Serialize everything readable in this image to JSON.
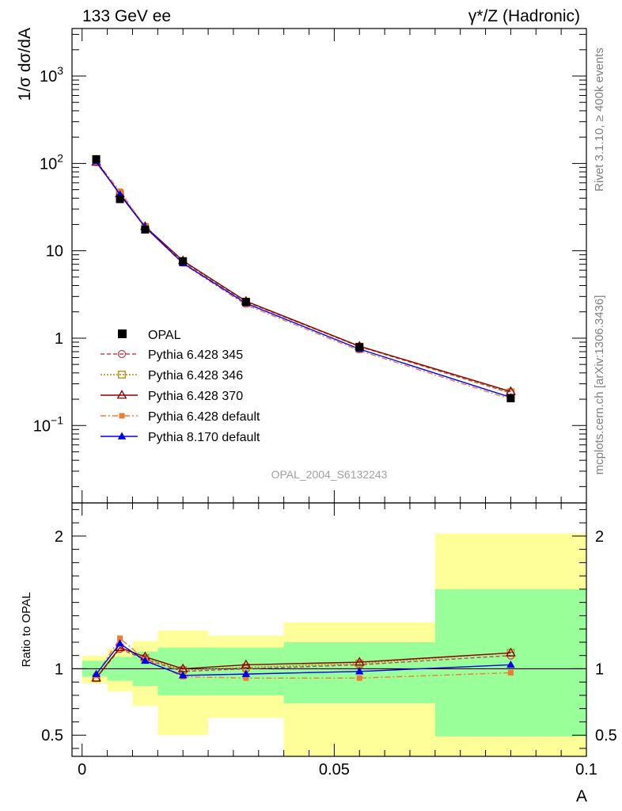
{
  "header": {
    "left": "133 GeV ee",
    "right": "γ*/Z (Hadronic)"
  },
  "side_text": {
    "upper": "Rivet 3.1.10, ≥ 400k events",
    "lower": "mcplots.cern.ch [arXiv:1306.3436]"
  },
  "analysis_label": "OPAL_2004_S6132243",
  "chart_data": [
    {
      "type": "line",
      "panel": "main",
      "ylabel": "1/σ dσ/dA",
      "yscale": "log",
      "ylim": [
        0.013,
        3500
      ],
      "xlim": [
        -0.002,
        0.1
      ],
      "yticks": [
        {
          "value": 0.1,
          "base": "10",
          "exp": "−1"
        },
        {
          "value": 1,
          "label": "1"
        },
        {
          "value": 10,
          "label": "10"
        },
        {
          "value": 100,
          "base": "10",
          "exp": "2"
        },
        {
          "value": 1000,
          "base": "10",
          "exp": "3"
        }
      ],
      "legend_position": "bottom-left",
      "x": [
        0.0028,
        0.0075,
        0.0125,
        0.02,
        0.0325,
        0.055,
        0.085
      ],
      "reference": {
        "name": "OPAL",
        "values": [
          112,
          39,
          17.5,
          7.6,
          2.6,
          0.79,
          0.205
        ],
        "color": "#000000"
      },
      "series": [
        {
          "name": "Pythia 6.428 345",
          "values": [
            104,
            45,
            18.5,
            7.5,
            2.6,
            0.8,
            0.235
          ],
          "color": "#c0484f",
          "dash": "5,3",
          "marker": "open-circle"
        },
        {
          "name": "Pythia 6.428 346",
          "values": [
            105,
            45.5,
            18.7,
            7.6,
            2.62,
            0.8,
            0.24
          ],
          "color": "#b8860b",
          "dash": "2,2",
          "marker": "open-square"
        },
        {
          "name": "Pythia 6.428 370",
          "values": [
            103,
            45,
            19,
            7.7,
            2.65,
            0.81,
            0.245
          ],
          "color": "#8b0000",
          "dash": "",
          "marker": "open-triangle"
        },
        {
          "name": "Pythia 6.428 default",
          "values": [
            107,
            48,
            18.8,
            7.1,
            2.4,
            0.72,
            0.2
          ],
          "color": "#f07b37",
          "dash": "7,3,2,3",
          "marker": "filled-square"
        },
        {
          "name": "Pythia 8.170 default",
          "values": [
            106,
            44,
            18.6,
            7.2,
            2.5,
            0.75,
            0.21
          ],
          "color": "#0000ee",
          "dash": "",
          "marker": "filled-triangle"
        }
      ]
    },
    {
      "type": "line",
      "panel": "ratio",
      "xlabel": "A",
      "ylabel": "Ratio to OPAL",
      "ylim": [
        0.34,
        2.25
      ],
      "xlim": [
        -0.002,
        0.1
      ],
      "xticks": [
        {
          "value": 0,
          "label": "0"
        },
        {
          "value": 0.05,
          "label": "0.05"
        },
        {
          "value": 0.1,
          "label": "0.1"
        }
      ],
      "yticks": [
        {
          "value": 0.5,
          "label": "0.5"
        },
        {
          "value": 1,
          "label": "1"
        },
        {
          "value": 2,
          "label": "2"
        }
      ],
      "bands": {
        "bin_edges": [
          0,
          0.005,
          0.01,
          0.015,
          0.025,
          0.04,
          0.07,
          0.1
        ],
        "inner": [
          [
            0.94,
            1.06
          ],
          [
            0.91,
            1.09
          ],
          [
            0.87,
            1.13
          ],
          [
            0.8,
            1.16
          ],
          [
            0.8,
            1.16
          ],
          [
            0.74,
            1.2
          ],
          [
            0.49,
            1.6
          ]
        ],
        "outer": [
          [
            0.89,
            1.1
          ],
          [
            0.83,
            1.15
          ],
          [
            0.72,
            1.21
          ],
          [
            0.5,
            1.29
          ],
          [
            0.63,
            1.25
          ],
          [
            0.34,
            1.35
          ],
          [
            0.34,
            2.02
          ]
        ],
        "inner_color": "#99ff99",
        "outer_color": "#ffff99"
      },
      "x": [
        0.0028,
        0.0075,
        0.0125,
        0.02,
        0.0325,
        0.055,
        0.085
      ],
      "series": [
        {
          "name": "Pythia 6.428 345",
          "values": [
            0.93,
            1.15,
            1.07,
            0.98,
            1.0,
            1.03,
            1.1
          ],
          "color": "#c0484f",
          "dash": "5,3",
          "marker": "open-circle"
        },
        {
          "name": "Pythia 6.428 346",
          "values": [
            0.93,
            1.16,
            1.08,
            0.99,
            1.01,
            1.04,
            1.12
          ],
          "color": "#b8860b",
          "dash": "2,2",
          "marker": "open-square"
        },
        {
          "name": "Pythia 6.428 370",
          "values": [
            0.93,
            1.16,
            1.09,
            1.0,
            1.03,
            1.05,
            1.12
          ],
          "color": "#8b0000",
          "dash": "",
          "marker": "open-triangle"
        },
        {
          "name": "Pythia 6.428 default",
          "values": [
            0.95,
            1.23,
            1.07,
            0.94,
            0.93,
            0.93,
            0.97
          ],
          "color": "#f07b37",
          "dash": "7,3,2,3",
          "marker": "filled-square"
        },
        {
          "name": "Pythia 8.170 default",
          "values": [
            0.96,
            1.19,
            1.06,
            0.95,
            0.96,
            0.98,
            1.03
          ],
          "color": "#0000ee",
          "dash": "",
          "marker": "filled-triangle"
        }
      ]
    }
  ]
}
